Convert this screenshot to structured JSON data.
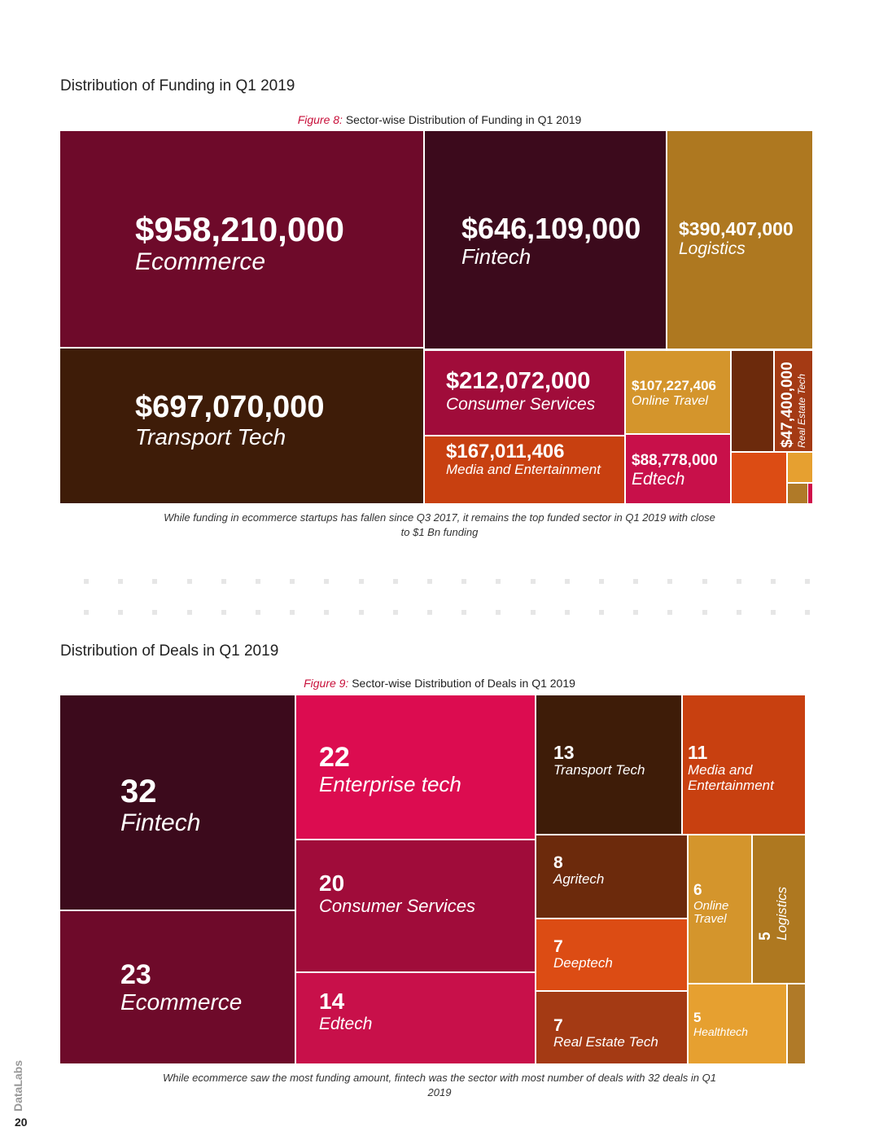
{
  "page": {
    "brand": "DataLabs",
    "page_number": "20"
  },
  "chart_data": [
    {
      "type": "treemap",
      "section_title": "Distribution of Funding in Q1 2019",
      "figure_label": "Figure 8:",
      "title": "Sector-wise Distribution of Funding in Q1 2019",
      "note": "While funding in ecommerce startups has fallen since Q3 2017, it remains the top funded sector in Q1 2019 with close to $1 Bn funding",
      "items": [
        {
          "label": "Ecommerce",
          "value_text": "$958,210,000",
          "value": 958210000,
          "color": "#6e0a2a"
        },
        {
          "label": "Fintech",
          "value_text": "$646,109,000",
          "value": 646109000,
          "color": "#3c0a1c"
        },
        {
          "label": "Logistics",
          "value_text": "$390,407,000",
          "value": 390407000,
          "color": "#ae7820"
        },
        {
          "label": "Transport Tech",
          "value_text": "$697,070,000",
          "value": 697070000,
          "color": "#3e1c08"
        },
        {
          "label": "Consumer Services",
          "value_text": "$212,072,000",
          "value": 212072000,
          "color": "#a00c3a"
        },
        {
          "label": "Online Travel",
          "value_text": "$107,227,406",
          "value": 107227406,
          "color": "#d4952c"
        },
        {
          "label": "",
          "value_text": "",
          "value": null,
          "color": "#6c2a0c"
        },
        {
          "label": "Real Estate Tech",
          "value_text": "$47,400,000",
          "value": 47400000,
          "color": "#a43a14"
        },
        {
          "label": "Media and Entertainment",
          "value_text": "$167,011,406",
          "value": 167011406,
          "color": "#c84010"
        },
        {
          "label": "Edtech",
          "value_text": "$88,778,000",
          "value": 88778000,
          "color": "#c8104a"
        },
        {
          "label": "",
          "value_text": "",
          "value": null,
          "color": "#dc4c14"
        },
        {
          "label": "",
          "value_text": "",
          "value": null,
          "color": "#e6a030"
        },
        {
          "label": "",
          "value_text": "",
          "value": null,
          "color": "#b07a28"
        },
        {
          "label": "",
          "value_text": "",
          "value": null,
          "color": "#d0104a"
        }
      ]
    },
    {
      "type": "treemap",
      "section_title": "Distribution of Deals in Q1 2019",
      "figure_label": "Figure 9:",
      "title": "Sector-wise Distribution of Deals in Q1 2019",
      "note": "While ecommerce saw the most funding amount, fintech was the sector with most number of deals with 32 deals in Q1 2019",
      "items": [
        {
          "label": "Fintech",
          "value_text": "32",
          "value": 32,
          "color": "#3c0a1c"
        },
        {
          "label": "Ecommerce",
          "value_text": "23",
          "value": 23,
          "color": "#6e0a2a"
        },
        {
          "label": "Enterprise tech",
          "value_text": "22",
          "value": 22,
          "color": "#dc0c50"
        },
        {
          "label": "Consumer Services",
          "value_text": "20",
          "value": 20,
          "color": "#a00c3a"
        },
        {
          "label": "Edtech",
          "value_text": "14",
          "value": 14,
          "color": "#c8104a"
        },
        {
          "label": "Transport Tech",
          "value_text": "13",
          "value": 13,
          "color": "#3e1c08"
        },
        {
          "label": "Media and Entertainment",
          "value_text": "11",
          "value": 11,
          "color": "#c84010"
        },
        {
          "label": "Agritech",
          "value_text": "8",
          "value": 8,
          "color": "#6c2a0c"
        },
        {
          "label": "Deeptech",
          "value_text": "7",
          "value": 7,
          "color": "#dc4c14"
        },
        {
          "label": "Real Estate Tech",
          "value_text": "7",
          "value": 7,
          "color": "#a43a14"
        },
        {
          "label": "Online Travel",
          "value_text": "6",
          "value": 6,
          "color": "#d4952c"
        },
        {
          "label": "Logistics",
          "value_text": "5",
          "value": 5,
          "color": "#ae7820"
        },
        {
          "label": "Healthtech",
          "value_text": "5",
          "value": 5,
          "color": "#e6a030"
        },
        {
          "label": "",
          "value_text": "",
          "value": null,
          "color": "#b07a28"
        }
      ]
    }
  ]
}
